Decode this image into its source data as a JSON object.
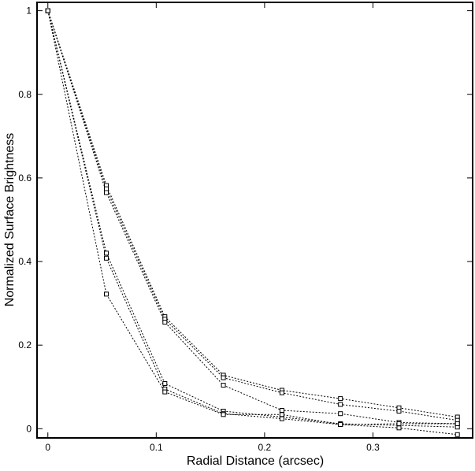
{
  "chart_data": {
    "type": "line",
    "title": "",
    "xlabel": "Radial Distance (arcsec)",
    "ylabel": "Normalized Surface Brightness",
    "xlim": [
      -0.01,
      0.392
    ],
    "ylim": [
      -0.022,
      1.02
    ],
    "xticks": [
      0,
      0.1,
      0.2,
      0.3
    ],
    "xtick_labels": [
      "0",
      "0.1",
      "0.2",
      "0.3"
    ],
    "yticks": [
      0,
      0.2,
      0.4,
      0.6,
      0.8,
      1
    ],
    "ytick_labels": [
      "0",
      "0.2",
      "0.4",
      "0.6",
      "0.8",
      "1"
    ],
    "grid": false,
    "legend": "none",
    "marker": "open-square",
    "line_style": "dotted",
    "color": "#000000",
    "x": [
      0,
      0.054,
      0.108,
      0.162,
      0.216,
      0.27,
      0.324,
      0.378
    ],
    "series": [
      {
        "values": [
          1.0,
          0.582,
          0.268,
          0.128,
          0.092,
          0.072,
          0.05,
          0.028
        ]
      },
      {
        "values": [
          1.0,
          0.574,
          0.262,
          0.122,
          0.086,
          0.058,
          0.042,
          0.02
        ]
      },
      {
        "values": [
          1.0,
          0.565,
          0.255,
          0.104,
          0.044,
          0.036,
          0.015,
          0.012
        ]
      },
      {
        "values": [
          1.0,
          0.42,
          0.108,
          0.042,
          0.028,
          0.012,
          0.008,
          0.004
        ]
      },
      {
        "values": [
          1.0,
          0.408,
          0.095,
          0.036,
          0.024,
          0.01,
          0.002,
          -0.014
        ]
      },
      {
        "values": [
          1.0,
          0.322,
          0.088,
          0.034,
          0.034,
          0.01,
          0.012,
          0.012
        ]
      }
    ]
  }
}
